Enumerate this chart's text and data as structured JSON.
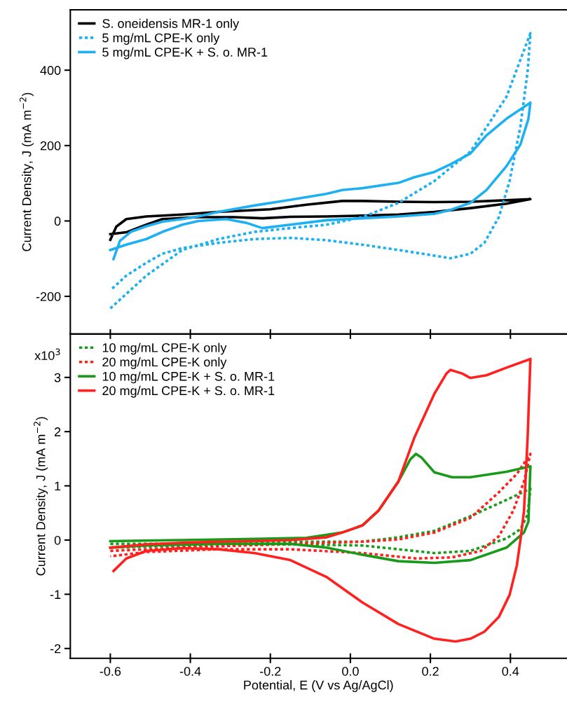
{
  "chart_data": [
    {
      "type": "line",
      "ylabel": "Current Density, J (mA m$^{−2}$)",
      "xlim": [
        -0.7,
        0.54
      ],
      "ylim": [
        -300,
        560
      ],
      "xticks": [
        -0.6,
        -0.4,
        -0.2,
        0.0,
        0.2,
        0.4
      ],
      "yticks": [
        -200,
        0,
        200,
        400
      ],
      "tick_labels": "y",
      "legend": "top left",
      "grid": false,
      "series": [
        {
          "name": "S. oneidensis MR-1 only",
          "color": "#000000",
          "line_style": "solid",
          "x": [
            -0.6,
            -0.585,
            -0.56,
            -0.51,
            -0.42,
            -0.33,
            -0.2,
            -0.11,
            -0.02,
            0.03,
            0.12,
            0.21,
            0.3,
            0.39,
            0.45,
            0.39,
            0.3,
            0.21,
            0.12,
            0.03,
            -0.06,
            -0.15,
            -0.22,
            -0.29,
            -0.38,
            -0.47,
            -0.51,
            -0.56,
            -0.6
          ],
          "values": [
            -50,
            -15,
            5,
            12,
            17,
            24,
            31,
            43,
            53,
            53,
            51,
            50,
            51,
            55,
            58,
            46,
            34,
            24,
            17,
            14,
            12,
            11,
            7,
            10,
            10,
            5,
            -10,
            -30,
            -35
          ]
        },
        {
          "name": "5 mg/mL CPE-K only",
          "color": "#1eb0f0",
          "line_style": "dotted",
          "x": [
            -0.6,
            -0.51,
            -0.42,
            -0.33,
            -0.24,
            -0.15,
            -0.06,
            0.03,
            0.12,
            0.21,
            0.3,
            0.39,
            0.45,
            0.443,
            0.425,
            0.398,
            0.371,
            0.335,
            0.3,
            0.25,
            0.21,
            0.12,
            0.03,
            -0.06,
            -0.15,
            -0.24,
            -0.33,
            -0.42,
            -0.47,
            -0.51,
            -0.56,
            -0.6
          ],
          "values": [
            -232,
            -145,
            -77,
            -48,
            -29,
            -19,
            -10,
            10,
            48,
            106,
            184,
            329,
            498,
            396,
            251,
            106,
            10,
            -58,
            -87,
            -99,
            -92,
            -77,
            -63,
            -51,
            -45,
            -48,
            -58,
            -72,
            -87,
            -111,
            -145,
            -184
          ]
        },
        {
          "name": "5 mg/mL CPE-K + S. o. MR-1",
          "color": "#1eb0f0",
          "line_style": "solid",
          "x": [
            -0.592,
            -0.576,
            -0.549,
            -0.51,
            -0.47,
            -0.42,
            -0.38,
            -0.33,
            -0.24,
            -0.15,
            -0.06,
            -0.02,
            0.03,
            0.12,
            0.16,
            0.21,
            0.25,
            0.3,
            0.34,
            0.39,
            0.45,
            0.445,
            0.425,
            0.39,
            0.34,
            0.3,
            0.25,
            0.21,
            0.12,
            0.03,
            -0.06,
            -0.15,
            -0.22,
            -0.26,
            -0.31,
            -0.38,
            -0.42,
            -0.47,
            -0.51,
            -0.56,
            -0.6
          ],
          "values": [
            -101,
            -53,
            -29,
            -14,
            -2,
            5,
            12,
            24,
            41,
            56,
            72,
            82,
            87,
            101,
            116,
            130,
            150,
            179,
            227,
            271,
            314,
            271,
            203,
            145,
            82,
            48,
            29,
            19,
            12,
            7,
            2,
            -10,
            -19,
            -5,
            5,
            0,
            -10,
            -29,
            -48,
            -63,
            -77
          ]
        }
      ]
    },
    {
      "type": "line",
      "xlabel": "Potential, E (V vs Ag/AgCl)",
      "ylabel": "Current Density, J (mA m$^{−2}$)",
      "xlim": [
        -0.7,
        0.54
      ],
      "ylim": [
        -2.18,
        3.8
      ],
      "xticks": [
        -0.6,
        -0.4,
        -0.2,
        {
          "value": 0,
          "label": "0.0"
        },
        0.2,
        0.4
      ],
      "yticks": [
        -2,
        -1,
        0,
        1,
        2,
        3
      ],
      "annotations": [
        "x10$^{3}$"
      ],
      "legend": "top left",
      "grid": false,
      "series": [
        {
          "name": "10 mg/mL CPE-K only",
          "color": "#1a9a1a",
          "line_style": "dotted",
          "x": [
            -0.6,
            -0.42,
            -0.15,
            0.03,
            0.12,
            0.21,
            0.3,
            0.39,
            0.45,
            0.443,
            0.425,
            0.39,
            0.3,
            0.21,
            0.12,
            0.03,
            -0.15,
            -0.42,
            -0.6
          ],
          "values": [
            -0.07,
            -0.07,
            -0.03,
            -0.03,
            0.05,
            0.17,
            0.44,
            0.74,
            0.95,
            0.47,
            0.2,
            0.03,
            -0.2,
            -0.24,
            -0.17,
            -0.1,
            -0.08,
            -0.1,
            -0.14
          ]
        },
        {
          "name": "20 mg/mL CPE-K only",
          "color": "#ff2020",
          "line_style": "dotted",
          "x": [
            -0.6,
            -0.42,
            -0.15,
            0.03,
            0.12,
            0.21,
            0.3,
            0.371,
            0.416,
            0.45,
            0.434,
            0.407,
            0.371,
            0.326,
            0.254,
            0.164,
            0.03,
            -0.15,
            -0.33,
            -0.51,
            -0.6
          ],
          "values": [
            -0.2,
            -0.14,
            -0.07,
            -0.03,
            0.01,
            0.14,
            0.41,
            0.88,
            1.22,
            1.59,
            1.08,
            0.54,
            0.07,
            -0.2,
            -0.32,
            -0.34,
            -0.24,
            -0.17,
            -0.17,
            -0.22,
            -0.3
          ]
        },
        {
          "name": "10 mg/mL CPE-K + S. o. MR-1",
          "color": "#1a9a1a",
          "line_style": "solid",
          "x": [
            -0.6,
            -0.42,
            -0.24,
            -0.11,
            -0.02,
            0.03,
            0.07,
            0.12,
            0.15,
            0.164,
            0.178,
            0.21,
            0.254,
            0.3,
            0.39,
            0.45,
            0.445,
            0.434,
            0.39,
            0.3,
            0.21,
            0.12,
            0.03,
            -0.06,
            -0.15,
            -0.33,
            -0.51,
            -0.6
          ],
          "values": [
            -0.02,
            0.0,
            0.02,
            0.04,
            0.14,
            0.27,
            0.54,
            1.08,
            1.49,
            1.59,
            1.52,
            1.25,
            1.16,
            1.16,
            1.26,
            1.36,
            0.34,
            0.14,
            -0.14,
            -0.37,
            -0.42,
            -0.39,
            -0.27,
            -0.14,
            -0.07,
            -0.07,
            -0.1,
            -0.14
          ]
        },
        {
          "name": "20 mg/mL CPE-K + S. o. MR-1",
          "color": "#ff2020",
          "line_style": "solid",
          "x": [
            -0.6,
            -0.51,
            -0.42,
            -0.33,
            -0.24,
            -0.15,
            -0.06,
            -0.02,
            0.03,
            0.07,
            0.12,
            0.16,
            0.21,
            0.24,
            0.25,
            0.28,
            0.3,
            0.34,
            0.39,
            0.45,
            0.443,
            0.434,
            0.425,
            0.416,
            0.398,
            0.371,
            0.335,
            0.3,
            0.263,
            0.21,
            0.12,
            0.03,
            -0.06,
            -0.15,
            -0.24,
            -0.33,
            -0.42,
            -0.51,
            -0.56,
            -0.592
          ],
          "values": [
            -0.14,
            -0.08,
            -0.05,
            -0.03,
            -0.02,
            0.0,
            0.05,
            0.14,
            0.27,
            0.54,
            1.08,
            1.89,
            2.7,
            3.07,
            3.14,
            3.07,
            2.99,
            3.04,
            3.18,
            3.34,
            1.89,
            0.54,
            0.0,
            -0.47,
            -1.01,
            -1.42,
            -1.69,
            -1.82,
            -1.87,
            -1.82,
            -1.55,
            -1.15,
            -0.68,
            -0.37,
            -0.24,
            -0.17,
            -0.15,
            -0.2,
            -0.34,
            -0.57
          ]
        }
      ]
    }
  ]
}
